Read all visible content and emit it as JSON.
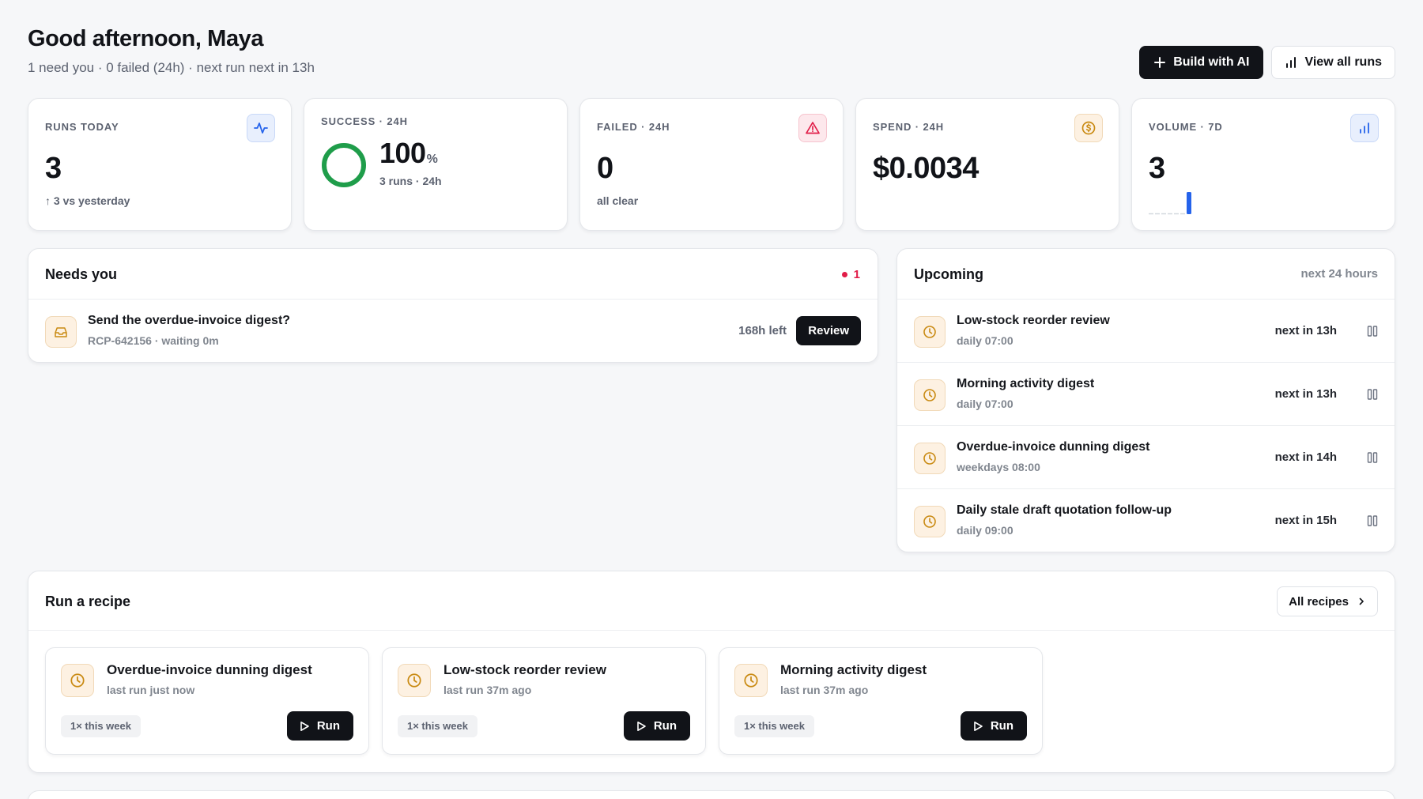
{
  "header": {
    "greeting": "Good afternoon, Maya",
    "subline": "1 need you · 0 failed (24h) · next run next in 13h",
    "build_label": "Build with AI",
    "view_runs_label": "View all runs"
  },
  "kpis": {
    "runs_today": {
      "label": "RUNS TODAY",
      "value": "3",
      "sub": "↑ 3 vs yesterday"
    },
    "success": {
      "label": "SUCCESS · 24H",
      "value": "100",
      "unit": "%",
      "sub": "3 runs · 24h",
      "rate": 1.0
    },
    "failed": {
      "label": "FAILED · 24H",
      "value": "0",
      "sub": "all clear"
    },
    "spend": {
      "label": "SPEND · 24H",
      "value": "$0.0034"
    },
    "volume": {
      "label": "VOLUME · 7D",
      "value": "3",
      "bars": [
        0,
        0,
        0,
        0,
        0,
        0,
        3
      ]
    }
  },
  "needs_you": {
    "title": "Needs you",
    "count": "1",
    "items": [
      {
        "title": "Send the overdue-invoice digest?",
        "sub": "RCP-642156 · waiting 0m",
        "time_left": "168h left",
        "action": "Review"
      }
    ]
  },
  "upcoming": {
    "title": "Upcoming",
    "range": "next 24 hours",
    "items": [
      {
        "title": "Low-stock reorder review",
        "schedule": "daily 07:00",
        "next": "next in 13h"
      },
      {
        "title": "Morning activity digest",
        "schedule": "daily 07:00",
        "next": "next in 13h"
      },
      {
        "title": "Overdue-invoice dunning digest",
        "schedule": "weekdays 08:00",
        "next": "next in 14h"
      },
      {
        "title": "Daily stale draft quotation follow-up",
        "schedule": "daily 09:00",
        "next": "next in 15h"
      }
    ]
  },
  "recipes": {
    "title": "Run a recipe",
    "all_label": "All recipes",
    "items": [
      {
        "title": "Overdue-invoice dunning digest",
        "last_run": "last run just now",
        "freq": "1× this week",
        "action": "Run"
      },
      {
        "title": "Low-stock reorder review",
        "last_run": "last run 37m ago",
        "freq": "1× this week",
        "action": "Run"
      },
      {
        "title": "Morning activity digest",
        "last_run": "last run 37m ago",
        "freq": "1× this week",
        "action": "Run"
      }
    ]
  },
  "colors": {
    "accent_blue": "#2563eb",
    "success_green": "#1f9d4a",
    "danger_red": "#e11d48",
    "amber": "#c98a12"
  }
}
